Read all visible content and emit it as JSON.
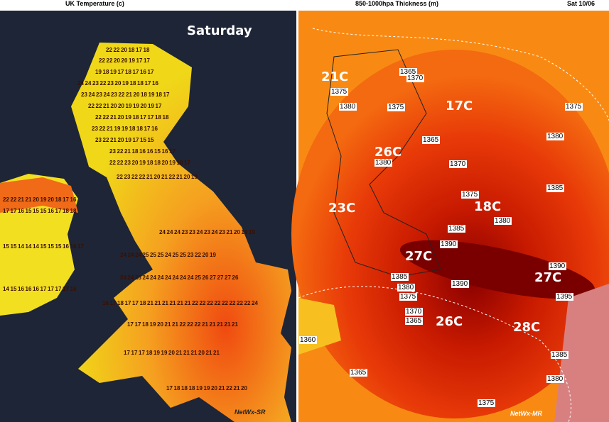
{
  "left_panel": {
    "title": "UK Temperature (c)",
    "day": "Saturday",
    "credit": "NetWx-SR",
    "temperature_rows": [
      [
        22,
        22,
        20,
        18,
        17,
        18
      ],
      [
        22,
        22,
        20,
        20,
        19,
        17,
        17
      ],
      [
        19,
        18,
        19,
        17,
        18,
        17,
        16,
        17
      ],
      [
        24,
        24,
        23,
        22,
        23,
        20,
        19,
        18,
        18,
        17,
        16
      ],
      [
        23,
        24,
        23,
        24,
        23,
        22,
        21,
        20,
        18,
        19,
        18,
        17
      ],
      [
        22,
        22,
        21,
        20,
        20,
        19,
        19,
        20,
        19,
        17
      ],
      [
        22,
        22,
        21,
        20,
        19,
        18,
        17,
        17,
        18,
        18
      ],
      [
        23,
        22,
        21,
        19,
        19,
        18,
        18,
        17,
        16
      ],
      [
        23,
        22,
        21,
        20,
        19,
        17,
        15,
        15
      ],
      [
        23,
        22,
        21,
        18,
        16,
        16,
        15,
        16,
        17
      ],
      [
        22,
        22,
        23,
        20,
        19,
        18,
        18,
        20,
        19,
        18,
        17
      ],
      [
        22,
        23,
        22,
        22,
        21,
        20,
        21,
        22,
        21,
        20,
        19
      ],
      [
        22,
        22,
        21,
        21,
        20,
        19,
        20,
        18,
        17,
        16
      ],
      [
        17,
        17,
        16,
        15,
        15,
        15,
        16,
        17,
        18,
        18
      ],
      [
        24,
        24,
        24,
        23,
        23,
        24,
        23,
        24,
        23,
        21,
        20,
        19,
        19
      ],
      [
        15,
        15,
        14,
        14,
        14,
        15,
        15,
        15,
        16,
        16,
        17
      ],
      [
        24,
        24,
        24,
        25,
        25,
        25,
        24,
        25,
        25,
        23,
        22,
        20,
        19
      ],
      [
        24,
        24,
        23,
        24,
        24,
        24,
        24,
        24,
        24,
        24,
        25,
        26,
        27,
        27,
        27,
        26
      ],
      [
        14,
        15,
        16,
        16,
        16,
        17,
        17,
        17,
        17,
        16
      ],
      [
        16,
        17,
        18,
        17,
        17,
        18,
        21,
        21,
        21,
        21,
        21,
        21,
        22,
        22,
        22,
        22,
        22,
        22,
        22,
        22,
        24
      ],
      [
        17,
        17,
        18,
        19,
        20,
        21,
        21,
        22,
        22,
        22,
        21,
        21,
        21,
        21,
        21
      ],
      [
        17,
        17,
        17,
        18,
        19,
        19,
        20,
        21,
        21,
        21,
        20,
        21,
        21
      ],
      [
        17,
        18,
        18,
        18,
        19,
        19,
        20,
        21,
        22,
        21,
        20
      ]
    ]
  },
  "right_panel": {
    "title": "850-1000hpa Thickness (m)",
    "date": "Sat 10/06",
    "credit": "NetWx-MR",
    "temperature_labels": [
      "21C",
      "17C",
      "26C",
      "23C",
      "18C",
      "27C",
      "27C",
      "26C",
      "28C"
    ],
    "contour_labels": [
      1365,
      1370,
      1375,
      1380,
      1375,
      1375,
      1365,
      1380,
      1370,
      1380,
      1385,
      1375,
      1380,
      1385,
      1390,
      1390,
      1385,
      1380,
      1390,
      1375,
      1395,
      1370,
      1365,
      1360,
      1385,
      1365,
      1380,
      1375
    ]
  }
}
